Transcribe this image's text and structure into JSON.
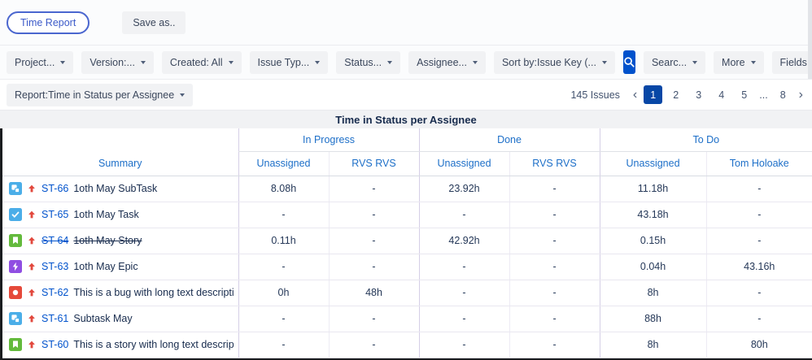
{
  "colors": {
    "link": "#0052CC",
    "table_header_text": "#1d6fc8",
    "active_page_bg": "#0747A6",
    "search_button_bg": "#0052CC",
    "priority_up": "#E2483D",
    "issue_types": {
      "task": "#4BADE8",
      "subtask": "#4BAEE8",
      "story": "#63BA3C",
      "epic": "#904EE2",
      "bug": "#E5493A"
    }
  },
  "topbar": {
    "time_report_label": "Time Report",
    "save_as_label": "Save as.."
  },
  "filters": [
    {
      "id": "project",
      "label": "Project...",
      "type": "dropdown"
    },
    {
      "id": "version",
      "label": "Version:...",
      "type": "dropdown"
    },
    {
      "id": "created",
      "label": "Created: All",
      "type": "dropdown"
    },
    {
      "id": "issue-type",
      "label": "Issue Typ...",
      "type": "dropdown"
    },
    {
      "id": "status",
      "label": "Status...",
      "type": "dropdown"
    },
    {
      "id": "assignee",
      "label": "Assignee...",
      "type": "dropdown"
    },
    {
      "id": "sort-by",
      "label": "Sort by:Issue Key (...",
      "type": "dropdown"
    },
    {
      "id": "search",
      "type": "search"
    },
    {
      "id": "search-text",
      "label": "Searc...",
      "type": "dropdown"
    },
    {
      "id": "more",
      "label": "More",
      "type": "dropdown",
      "push_right": true
    },
    {
      "id": "fields",
      "label": "Fields",
      "type": "dropdown"
    }
  ],
  "report_bar": {
    "selector_label": "Report:Time in Status per Assignee",
    "issues_count": "145 Issues",
    "prev_label": "‹",
    "next_label": "›",
    "pages": [
      "1",
      "2",
      "3",
      "4",
      "5",
      "...",
      "8"
    ],
    "active_page": "1"
  },
  "table": {
    "title": "Time in Status per Assignee",
    "summary_header": "Summary",
    "groups": [
      {
        "label": "In Progress",
        "columns": [
          "Unassigned",
          "RVS RVS"
        ]
      },
      {
        "label": "Done",
        "columns": [
          "Unassigned",
          "RVS RVS"
        ]
      },
      {
        "label": "To Do",
        "columns": [
          "Unassigned",
          "Tom Holoake"
        ]
      }
    ],
    "rows": [
      {
        "type": "subtask",
        "key": "ST-66",
        "summary": "1oth May SubTask",
        "strikethrough": false,
        "values": [
          "8.08h",
          "-",
          "23.92h",
          "-",
          "11.18h",
          "-"
        ]
      },
      {
        "type": "task",
        "key": "ST-65",
        "summary": "1oth May Task",
        "strikethrough": false,
        "values": [
          "-",
          "-",
          "-",
          "-",
          "43.18h",
          "-"
        ]
      },
      {
        "type": "story",
        "key": "ST-64",
        "summary": "1oth May Story",
        "strikethrough": true,
        "values": [
          "0.11h",
          "-",
          "42.92h",
          "-",
          "0.15h",
          "-"
        ]
      },
      {
        "type": "epic",
        "key": "ST-63",
        "summary": "1oth May Epic",
        "strikethrough": false,
        "values": [
          "-",
          "-",
          "-",
          "-",
          "0.04h",
          "43.16h"
        ]
      },
      {
        "type": "bug",
        "key": "ST-62",
        "summary": "This is a bug with long text description",
        "strikethrough": false,
        "values": [
          "0h",
          "48h",
          "-",
          "-",
          "8h",
          "-"
        ]
      },
      {
        "type": "subtask",
        "key": "ST-61",
        "summary": "Subtask May",
        "strikethrough": false,
        "values": [
          "-",
          "-",
          "-",
          "-",
          "88h",
          "-"
        ]
      },
      {
        "type": "story",
        "key": "ST-60",
        "summary": "This is a story with long text description",
        "strikethrough": false,
        "values": [
          "-",
          "-",
          "-",
          "-",
          "8h",
          "80h"
        ]
      }
    ]
  }
}
